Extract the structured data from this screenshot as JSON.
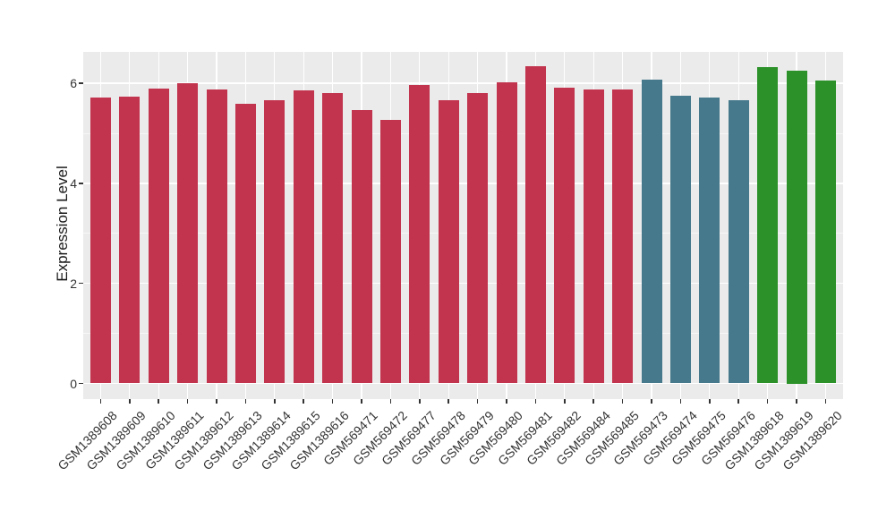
{
  "chart_data": {
    "type": "bar",
    "title": "",
    "xlabel": "",
    "ylabel": "Expression Level",
    "ytick_labels": [
      "0",
      "2",
      "4",
      "6"
    ],
    "ytick_values": [
      0,
      2,
      4,
      6
    ],
    "minor_gridline_values": [
      1,
      3,
      5
    ],
    "ylim": [
      -0.32,
      6.66
    ],
    "grid": "on",
    "legend_position": "none",
    "panel_bg": "#EBEBEB",
    "grid_color": "#FFFFFF",
    "axis_text_color": "#333333",
    "categories": [
      "GSM1389608",
      "GSM1389609",
      "GSM1389610",
      "GSM1389611",
      "GSM1389612",
      "GSM1389613",
      "GSM1389614",
      "GSM1389615",
      "GSM1389616",
      "GSM569471",
      "GSM569472",
      "GSM569477",
      "GSM569478",
      "GSM569479",
      "GSM569480",
      "GSM569481",
      "GSM569482",
      "GSM569484",
      "GSM569485",
      "GSM569473",
      "GSM569474",
      "GSM569475",
      "GSM569476",
      "GSM1389618",
      "GSM1389619",
      "GSM1389620"
    ],
    "values": [
      5.72,
      5.74,
      5.9,
      6.0,
      5.87,
      5.59,
      5.67,
      5.86,
      5.81,
      5.47,
      5.27,
      5.97,
      5.67,
      5.8,
      6.02,
      6.34,
      5.91,
      5.88,
      5.87,
      6.07,
      5.75,
      5.71,
      5.67,
      6.32,
      6.25,
      6.06
    ],
    "groups": [
      "red",
      "red",
      "red",
      "red",
      "red",
      "red",
      "red",
      "red",
      "red",
      "red",
      "red",
      "red",
      "red",
      "red",
      "red",
      "red",
      "red",
      "red",
      "red",
      "teal",
      "teal",
      "teal",
      "teal",
      "green",
      "green",
      "green"
    ],
    "palette": {
      "red": "#C2344E",
      "teal": "#45798B",
      "green": "#2B9128"
    }
  }
}
